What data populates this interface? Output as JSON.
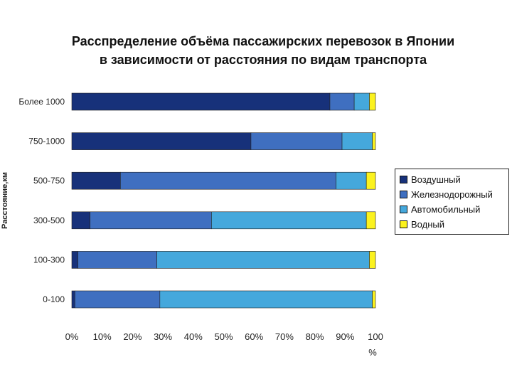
{
  "chart_data": {
    "type": "bar",
    "orientation": "horizontal",
    "stacked": true,
    "title_lines": [
      "Расспределение объёма пассажирских перевозок в Японии",
      "в зависимости от расстояния по видам транспорта"
    ],
    "ylabel": "Расстояние,км",
    "xlabel": "%",
    "xlim": [
      0,
      100
    ],
    "x_ticks": [
      "0%",
      "10%",
      "20%",
      "30%",
      "40%",
      "50%",
      "60%",
      "70%",
      "80%",
      "90%",
      "100"
    ],
    "categories": [
      "Более 1000",
      "750-1000",
      "500-750",
      "300-500",
      "100-300",
      "0-100"
    ],
    "series": [
      {
        "name": "Воздушный",
        "color": "#17317a",
        "values": [
          85,
          59,
          16,
          6,
          2,
          1
        ]
      },
      {
        "name": "Железнодорожный",
        "color": "#3f6fc0",
        "values": [
          8,
          30,
          71,
          40,
          26,
          28
        ]
      },
      {
        "name": "Автомобильный",
        "color": "#45a8dc",
        "values": [
          5,
          10,
          10,
          51,
          70,
          70
        ]
      },
      {
        "name": "Водный",
        "color": "#fbf21e",
        "values": [
          2,
          1,
          3,
          3,
          2,
          1
        ]
      }
    ],
    "grid": false,
    "legend_position": "right"
  }
}
